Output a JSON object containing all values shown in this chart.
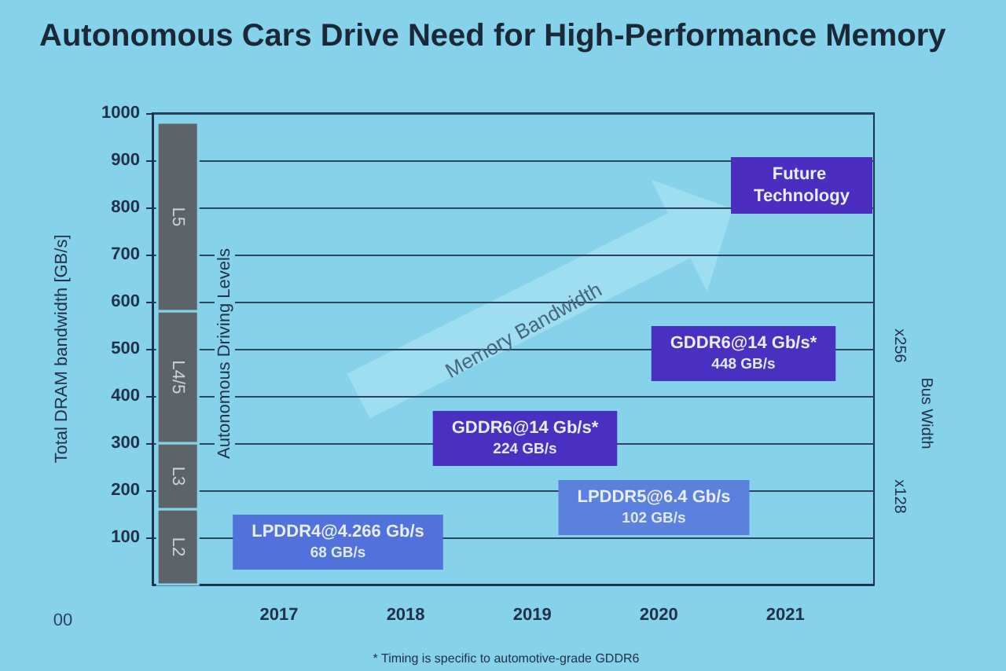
{
  "chart_data": {
    "type": "bar",
    "title": "Autonomous Cars Drive Need for High-Performance Memory",
    "ylabel": "Total DRAM bandwidth [GB/s]",
    "annotations": [
      "Autonomous Driving Levels",
      "Memory Bandwidth",
      "LPDDR4@4.266 Gb/s\n68 GB/s",
      "GDDR6@14 Gb/s*\n224 GB/s",
      "LPDDR5@6.4 Gb/s\n102 GB/s",
      "GDDR6@14 Gb/s*\n448 GB/s",
      "Future Technology",
      "Bus Width",
      "x256",
      "x128",
      "* Timing is specific to automotive-grade GDDR6",
      "00"
    ],
    "x": [
      2016.2
    ],
    "xlim": [
      2016,
      2021.7
    ],
    "xticks": [
      2017,
      2018,
      2019,
      2020,
      2021
    ],
    "ylim": [
      0,
      1000
    ],
    "yticks": [
      100,
      200,
      300,
      400,
      500,
      600,
      700,
      800,
      900,
      1000
    ],
    "grid": "y",
    "stacked": true,
    "series": [
      {
        "name": "L2",
        "color": "#5e6369",
        "values": [
          160
        ]
      },
      {
        "name": "L3",
        "color": "#5e6369",
        "values": [
          140
        ]
      },
      {
        "name": "L4/5",
        "color": "#5e6369",
        "values": [
          280
        ]
      },
      {
        "name": "L5",
        "color": "#5e6369",
        "values": [
          400
        ]
      }
    ]
  }
}
